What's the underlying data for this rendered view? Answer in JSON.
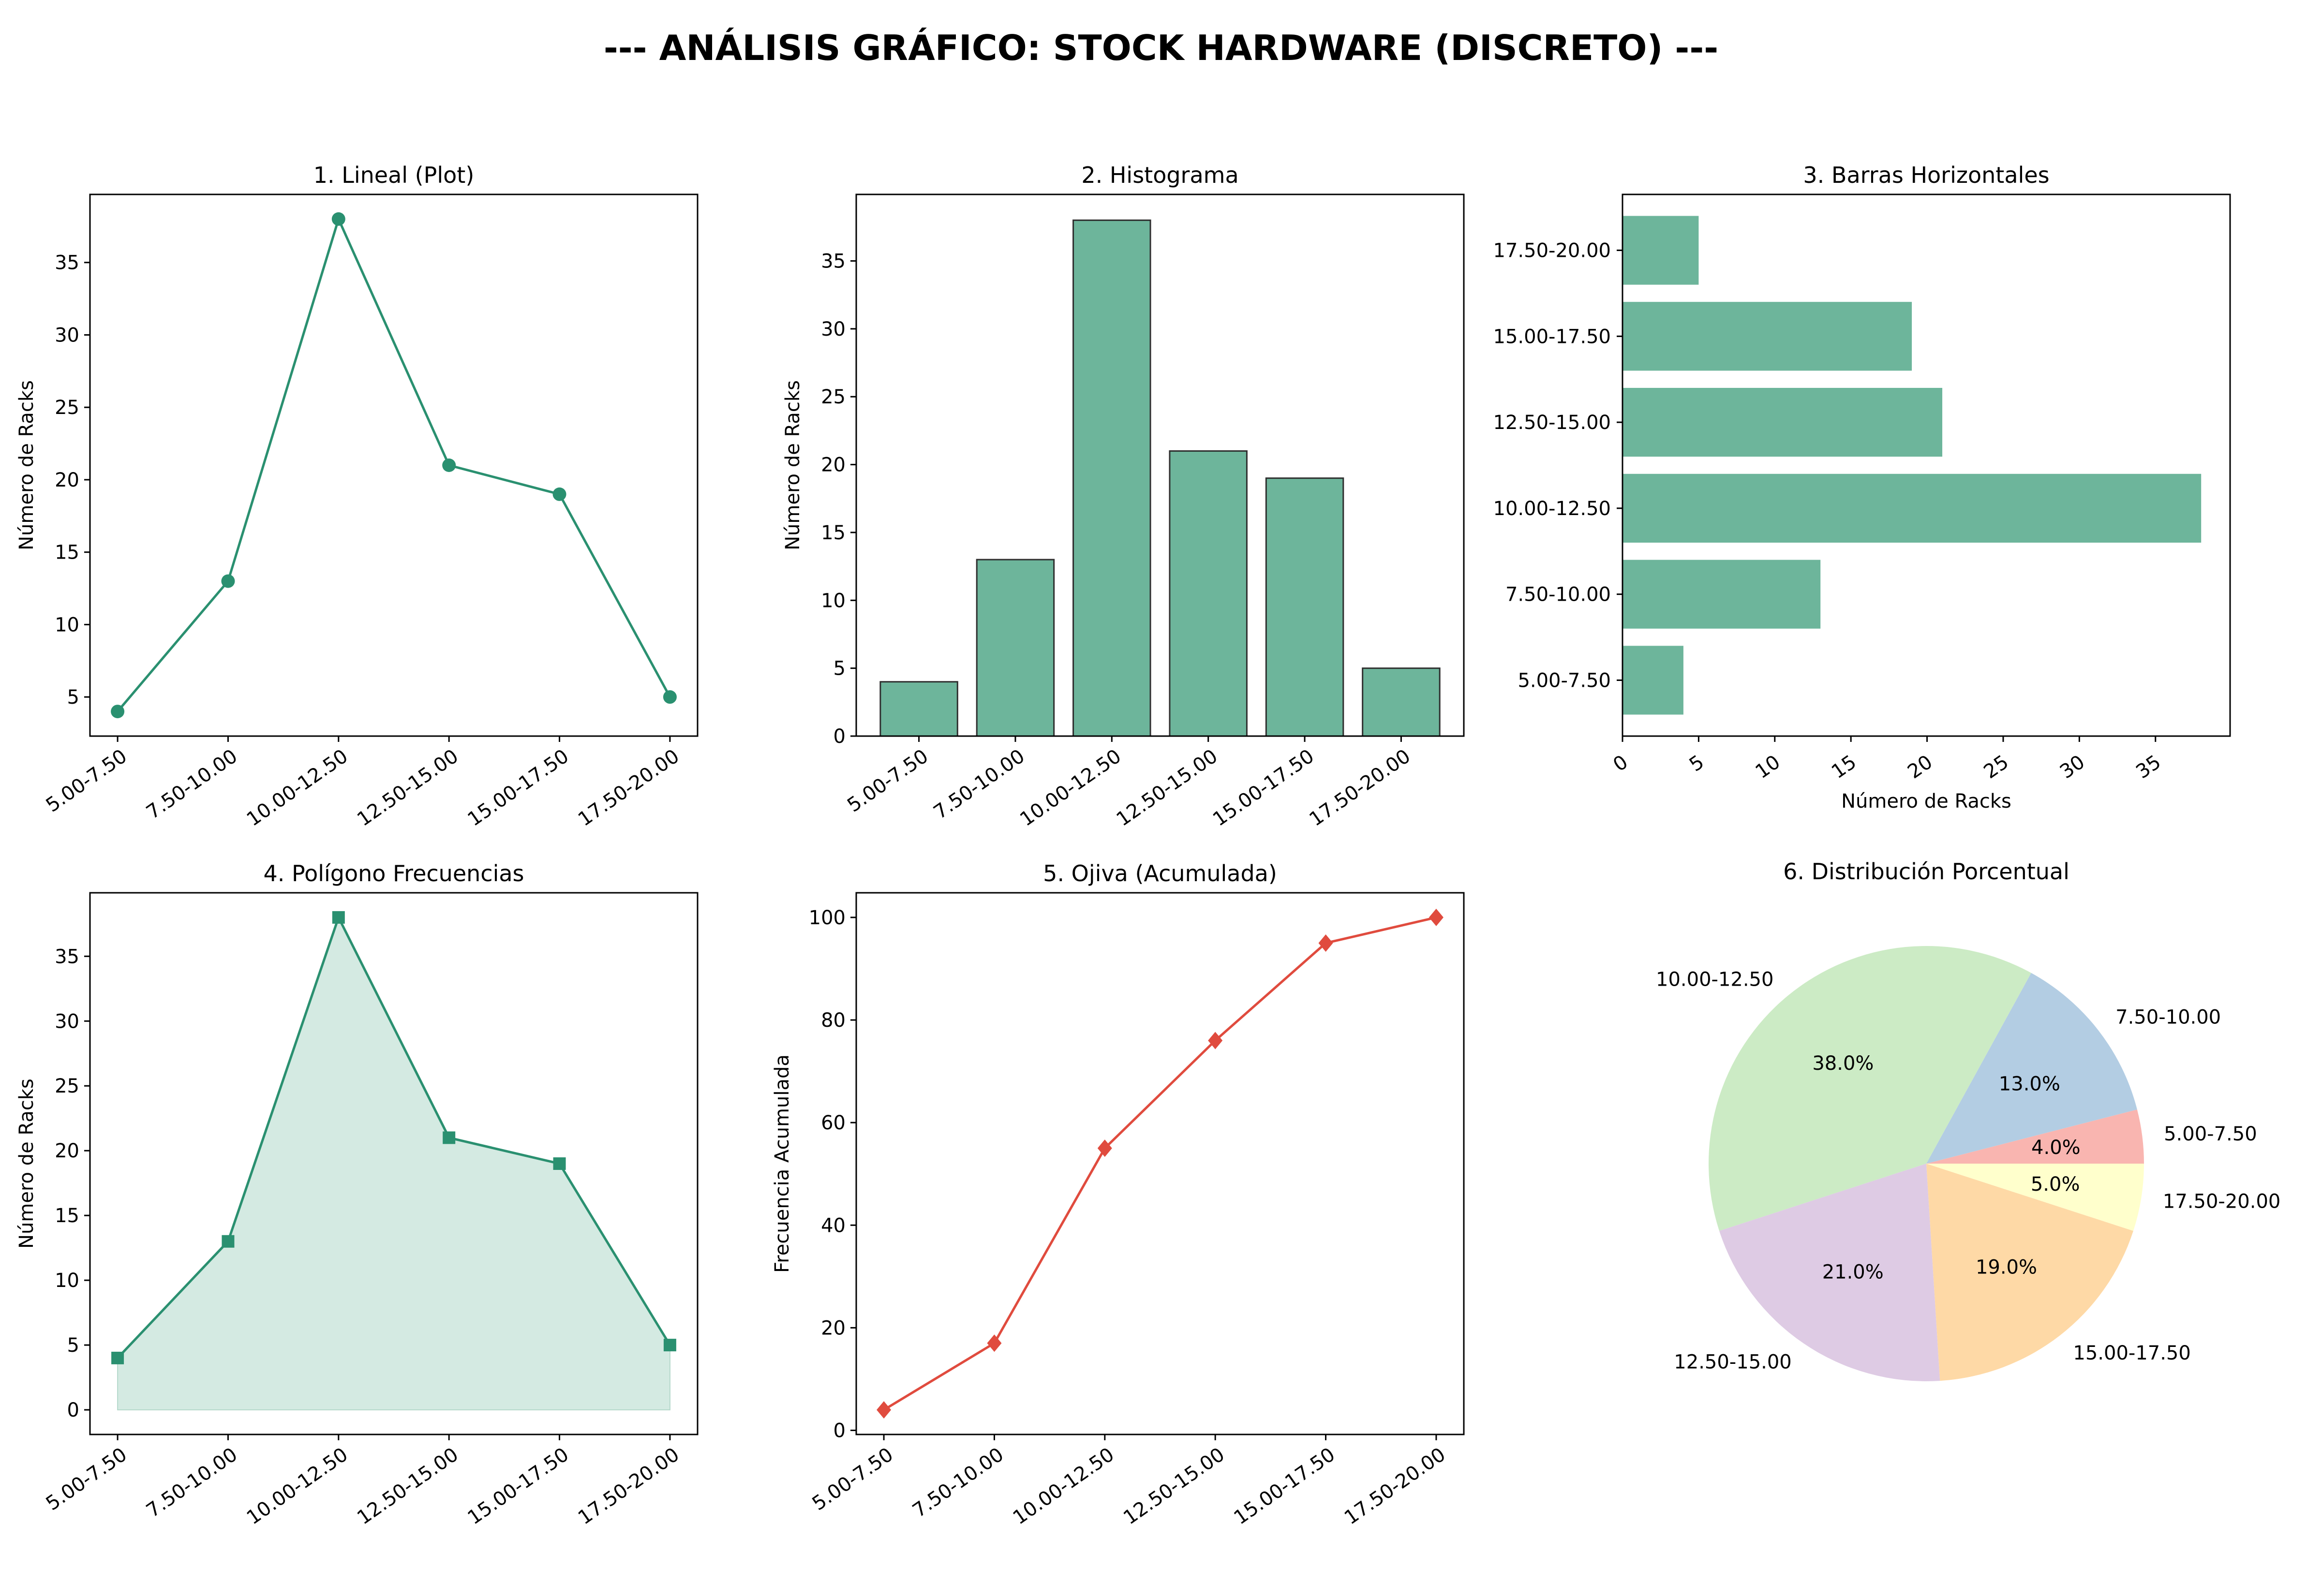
{
  "figure": {
    "title": "--- ANÁLISIS GRÁFICO: STOCK HARDWARE (DISCRETO) ---"
  },
  "colors": {
    "line": "#2a9070",
    "bar": "#6db59b",
    "poly_fill": "#d4eae2",
    "ogive": "#e04b3e",
    "pie": [
      "#f9b5b0",
      "#b3cde3",
      "#ccebc5",
      "#decbe4",
      "#fed9a6",
      "#ffffcc"
    ]
  },
  "chart_data": [
    {
      "type": "line",
      "title": "1. Lineal (Plot)",
      "xlabel": "",
      "ylabel": "Número de Racks",
      "categories": [
        "5.00-7.50",
        "7.50-10.00",
        "10.00-12.50",
        "12.50-15.00",
        "15.00-17.50",
        "17.50-20.00"
      ],
      "values": [
        4,
        13,
        38,
        21,
        19,
        5
      ],
      "ylim": [
        2.3,
        39.7
      ],
      "yticks": [
        5,
        10,
        15,
        20,
        25,
        30,
        35
      ],
      "marker": "circle"
    },
    {
      "type": "bar",
      "title": "2. Histograma",
      "xlabel": "",
      "ylabel": "Número de Racks",
      "categories": [
        "5.00-7.50",
        "7.50-10.00",
        "10.00-12.50",
        "12.50-15.00",
        "15.00-17.50",
        "17.50-20.00"
      ],
      "values": [
        4,
        13,
        38,
        21,
        19,
        5
      ],
      "ylim": [
        0,
        39.9
      ],
      "yticks": [
        0,
        5,
        10,
        15,
        20,
        25,
        30,
        35
      ]
    },
    {
      "type": "bar",
      "orientation": "horizontal",
      "title": "3. Barras Horizontales",
      "xlabel": "Número de Racks",
      "ylabel": "",
      "categories": [
        "5.00-7.50",
        "7.50-10.00",
        "10.00-12.50",
        "12.50-15.00",
        "15.00-17.50",
        "17.50-20.00"
      ],
      "values": [
        4,
        13,
        38,
        21,
        19,
        5
      ],
      "xlim": [
        0,
        39.9
      ],
      "xticks": [
        0,
        5,
        10,
        15,
        20,
        25,
        30,
        35
      ]
    },
    {
      "type": "area",
      "title": "4. Polígono Frecuencias",
      "xlabel": "",
      "ylabel": "Número de Racks",
      "categories": [
        "5.00-7.50",
        "7.50-10.00",
        "10.00-12.50",
        "12.50-15.00",
        "15.00-17.50",
        "17.50-20.00"
      ],
      "values": [
        4,
        13,
        38,
        21,
        19,
        5
      ],
      "ylim": [
        -1.9,
        39.9
      ],
      "yticks": [
        0,
        5,
        10,
        15,
        20,
        25,
        30,
        35
      ],
      "marker": "square"
    },
    {
      "type": "line",
      "title": "5. Ojiva (Acumulada)",
      "xlabel": "",
      "ylabel": "Frecuencia Acumulada",
      "categories": [
        "5.00-7.50",
        "7.50-10.00",
        "10.00-12.50",
        "12.50-15.00",
        "15.00-17.50",
        "17.50-20.00"
      ],
      "values": [
        4,
        17,
        55,
        76,
        95,
        100
      ],
      "ylim": [
        -0.8,
        104.8
      ],
      "yticks": [
        0,
        20,
        40,
        60,
        80,
        100
      ],
      "marker": "diamond"
    },
    {
      "type": "pie",
      "title": "6. Distribución Porcentual",
      "labels": [
        "5.00-7.50",
        "7.50-10.00",
        "10.00-12.50",
        "12.50-15.00",
        "15.00-17.50",
        "17.50-20.00"
      ],
      "values": [
        4,
        13,
        38,
        21,
        19,
        5
      ],
      "pct_labels": [
        "4.0%",
        "13.0%",
        "38.0%",
        "21.0%",
        "19.0%",
        "5.0%"
      ]
    }
  ]
}
